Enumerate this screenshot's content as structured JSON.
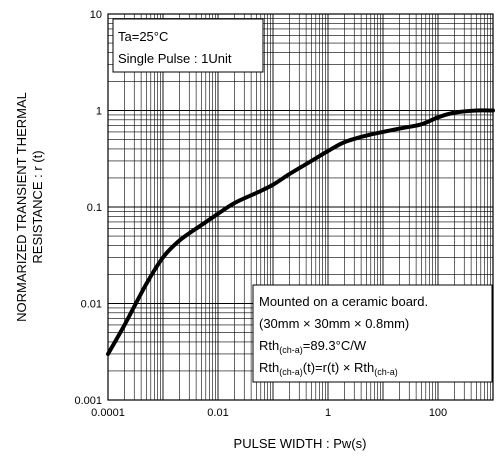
{
  "chart_data": {
    "type": "line",
    "x_scale": "log",
    "y_scale": "log",
    "xlim": [
      0.0001,
      1000
    ],
    "ylim": [
      0.001,
      10
    ],
    "grid": true,
    "xlabel": "PULSE WIDTH : Pw(s)",
    "ylabel_line1": "NORMARIZED TRANSIENT THERMAL",
    "ylabel_line2": "RESISTANCE : r (t)",
    "x_ticks": [
      {
        "value": 0.0001,
        "label": "0.0001"
      },
      {
        "value": 0.01,
        "label": "0.01"
      },
      {
        "value": 1,
        "label": "1"
      },
      {
        "value": 100,
        "label": "100"
      }
    ],
    "y_ticks": [
      {
        "value": 0.001,
        "label": "0.001"
      },
      {
        "value": 0.01,
        "label": "0.01"
      },
      {
        "value": 0.1,
        "label": "0.1"
      },
      {
        "value": 1,
        "label": "1"
      },
      {
        "value": 10,
        "label": "10"
      }
    ],
    "series": [
      {
        "color": "#000000",
        "x": [
          0.0001,
          0.0002,
          0.0005,
          0.001,
          0.002,
          0.005,
          0.01,
          0.02,
          0.05,
          0.1,
          0.2,
          0.5,
          1,
          2,
          5,
          10,
          20,
          50,
          100,
          200,
          500,
          1000
        ],
        "y": [
          0.003,
          0.006,
          0.016,
          0.03,
          0.045,
          0.065,
          0.085,
          0.11,
          0.14,
          0.17,
          0.22,
          0.3,
          0.38,
          0.47,
          0.55,
          0.6,
          0.65,
          0.72,
          0.85,
          0.95,
          1.0,
          1.0
        ]
      }
    ],
    "annotation_top": {
      "line1": "Ta=25°C",
      "line2": "Single Pulse : 1Unit"
    },
    "annotation_bottom": {
      "line1": "Mounted on a ceramic board.",
      "line2": "(30mm × 30mm × 0.8mm)",
      "rth_prefix": "Rth",
      "rth_sub": "(ch-a)",
      "rth_value": "=89.3°C/W",
      "rtht_prefix": "Rth",
      "rtht_sub": "(ch-a)",
      "rtht_mid": "(t)=r(t) × Rth",
      "rtht_sub2": "(ch-a)"
    }
  }
}
